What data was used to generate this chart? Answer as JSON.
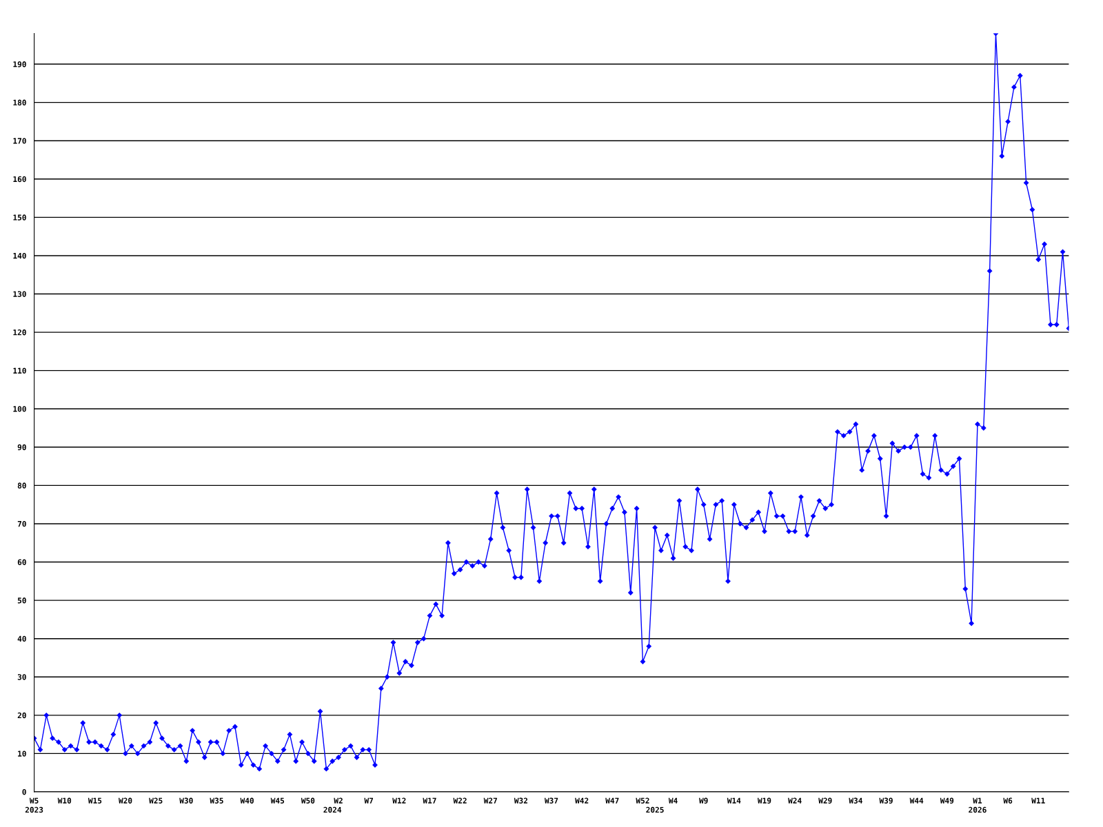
{
  "chart_data": {
    "type": "line",
    "categories": [
      "W5\n2023",
      null,
      null,
      null,
      null,
      "W10",
      null,
      null,
      null,
      null,
      "W15",
      null,
      null,
      null,
      null,
      "W20",
      null,
      null,
      null,
      null,
      "W25",
      null,
      null,
      null,
      null,
      "W30",
      null,
      null,
      null,
      null,
      "W35",
      null,
      null,
      null,
      null,
      "W40",
      null,
      null,
      null,
      null,
      "W45",
      null,
      null,
      null,
      null,
      "W50",
      null,
      null,
      null,
      "\n2024",
      "W2",
      null,
      null,
      null,
      null,
      "W7",
      null,
      null,
      null,
      null,
      "W12",
      null,
      null,
      null,
      null,
      "W17",
      null,
      null,
      null,
      null,
      "W22",
      null,
      null,
      null,
      null,
      "W27",
      null,
      null,
      null,
      null,
      "W32",
      null,
      null,
      null,
      null,
      "W37",
      null,
      null,
      null,
      null,
      "W42",
      null,
      null,
      null,
      null,
      "W47",
      null,
      null,
      null,
      null,
      "W52",
      null,
      "\n2025",
      null,
      null,
      "W4",
      null,
      null,
      null,
      null,
      "W9",
      null,
      null,
      null,
      null,
      "W14",
      null,
      null,
      null,
      null,
      "W19",
      null,
      null,
      null,
      null,
      "W24",
      null,
      null,
      null,
      null,
      "W29",
      null,
      null,
      null,
      null,
      "W34",
      null,
      null,
      null,
      null,
      "W39",
      null,
      null,
      null,
      null,
      "W44",
      null,
      null,
      null,
      null,
      "W49",
      null,
      null,
      null,
      null,
      "W1\n2026",
      null,
      null,
      null,
      null,
      "W6",
      null,
      null,
      null,
      null,
      "W11",
      null,
      null,
      null,
      null,
      null
    ],
    "series": [
      {
        "color": "#0000ff",
        "values": [
          14,
          11,
          20,
          14,
          13,
          11,
          12,
          11,
          18,
          13,
          13,
          12,
          11,
          15,
          20,
          10,
          12,
          10,
          12,
          13,
          18,
          14,
          12,
          11,
          12,
          8,
          16,
          13,
          9,
          13,
          13,
          10,
          16,
          17,
          7,
          10,
          7,
          6,
          12,
          10,
          8,
          11,
          15,
          8,
          13,
          10,
          8,
          21,
          6,
          8,
          9,
          11,
          12,
          9,
          11,
          11,
          7,
          27,
          30,
          39,
          31,
          34,
          33,
          39,
          40,
          46,
          49,
          46,
          65,
          57,
          58,
          60,
          59,
          60,
          59,
          66,
          78,
          69,
          63,
          56,
          56,
          79,
          69,
          55,
          65,
          72,
          72,
          65,
          78,
          74,
          74,
          64,
          79,
          55,
          70,
          74,
          77,
          73,
          52,
          74,
          34,
          38,
          69,
          63,
          67,
          61,
          76,
          64,
          63,
          79,
          75,
          66,
          75,
          76,
          55,
          75,
          70,
          69,
          71,
          73,
          68,
          78,
          72,
          72,
          68,
          68,
          77,
          67,
          72,
          76,
          74,
          75,
          94,
          93,
          94,
          96,
          84,
          89,
          93,
          87,
          72,
          91,
          89,
          90,
          90,
          93,
          83,
          82,
          93,
          84,
          83,
          85,
          87,
          53,
          44,
          96,
          95,
          136,
          198,
          166,
          175,
          184,
          187,
          159,
          152,
          139,
          143,
          122,
          122,
          141,
          121
        ]
      }
    ],
    "ylim": [
      0,
      198
    ],
    "yticks": [
      0,
      10,
      20,
      30,
      40,
      50,
      60,
      70,
      80,
      90,
      100,
      110,
      120,
      130,
      140,
      150,
      160,
      170,
      180,
      190
    ],
    "grid": "y",
    "marker": "diamond",
    "line_style": "solid"
  }
}
